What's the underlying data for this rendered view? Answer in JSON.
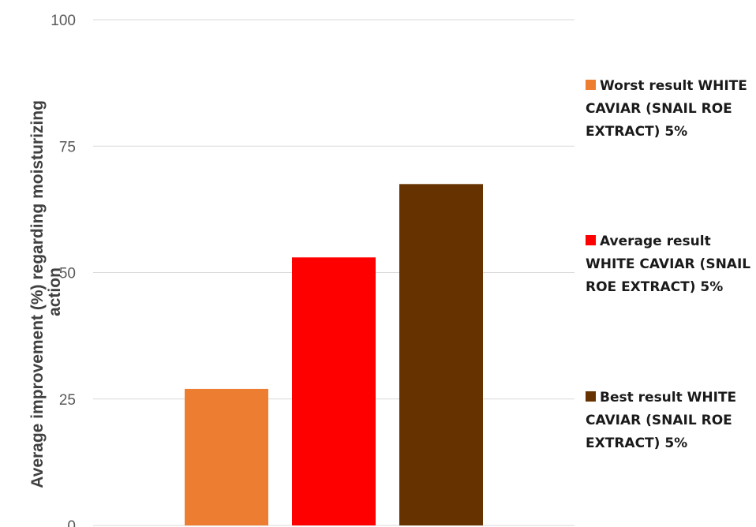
{
  "chart_data": {
    "type": "bar",
    "ylabel": "Average improvement (%) regarding moisturizing action",
    "ylim": [
      0,
      100
    ],
    "yticks": [
      0,
      25,
      50,
      75,
      100
    ],
    "grid": true,
    "legend_position": "right",
    "series": [
      {
        "name": "Worst result WHITE CAVIAR (SNAIL ROE EXTRACT) 5%",
        "value": 27,
        "color": "#ed7d31"
      },
      {
        "name": "Average result WHITE CAVIAR (SNAIL ROE EXTRACT) 5%",
        "value": 53,
        "color": "#ff0000"
      },
      {
        "name": "Best result WHITE CAVIAR (SNAIL ROE EXTRACT) 5%",
        "value": 67.5,
        "color": "#663300"
      }
    ]
  }
}
